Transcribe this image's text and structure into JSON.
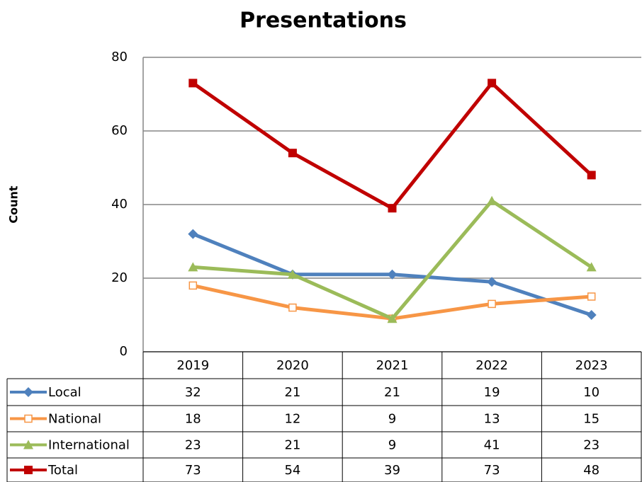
{
  "chart_data": {
    "type": "line",
    "title": "Presentations",
    "y_label": "Count",
    "categories": [
      "2019",
      "2020",
      "2021",
      "2022",
      "2023"
    ],
    "series": [
      {
        "name": "Local",
        "color": "#4f81bd",
        "marker": "diamond",
        "values": [
          32,
          21,
          21,
          19,
          10
        ]
      },
      {
        "name": "National",
        "color": "#f79646",
        "marker": "open-square",
        "values": [
          18,
          12,
          9,
          13,
          15
        ]
      },
      {
        "name": "International",
        "color": "#9bbb59",
        "marker": "triangle",
        "values": [
          23,
          21,
          9,
          41,
          23
        ]
      },
      {
        "name": "Total",
        "color": "#c00000",
        "marker": "square",
        "values": [
          73,
          54,
          39,
          73,
          48
        ]
      }
    ],
    "ylim": [
      0,
      80
    ],
    "yticks": [
      0,
      20,
      40,
      60,
      80
    ],
    "grid": true,
    "data_table": true
  }
}
